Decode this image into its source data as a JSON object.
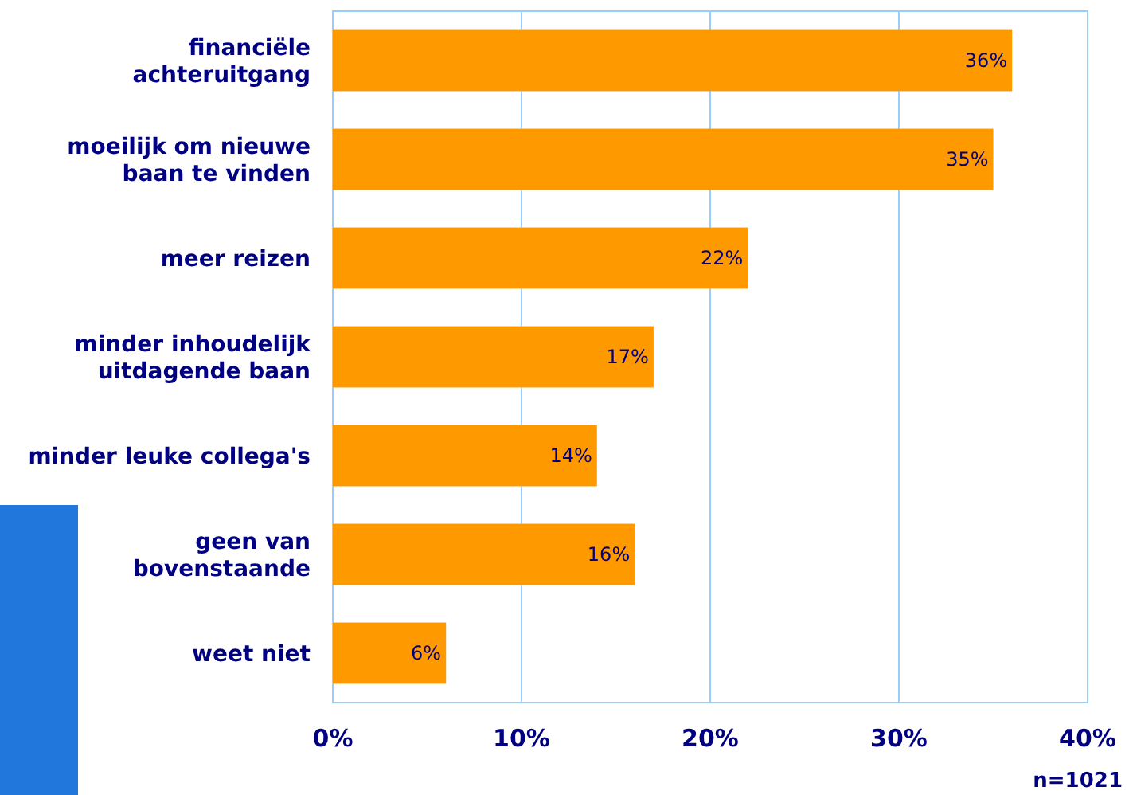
{
  "chart_data": {
    "type": "bar",
    "orientation": "horizontal",
    "categories": [
      "financiële\nachteruitgang",
      "moeilijk om nieuwe\nbaan te vinden",
      "meer reizen",
      "minder inhoudelijk\nuitdagende baan",
      "minder leuke collega's",
      "geen van\nbovenstaande",
      "weet niet"
    ],
    "values": [
      36,
      35,
      22,
      17,
      14,
      16,
      6
    ],
    "value_labels": [
      "36%",
      "35%",
      "22%",
      "17%",
      "14%",
      "16%",
      "6%"
    ],
    "color": "#ff9900",
    "xlim": [
      0,
      40
    ],
    "xticks": [
      {
        "value": 0,
        "label": "0%"
      },
      {
        "value": 10,
        "label": "10%"
      },
      {
        "value": 20,
        "label": "20%"
      },
      {
        "value": 30,
        "label": "30%"
      },
      {
        "value": 40,
        "label": "40%"
      }
    ],
    "grid": "x",
    "annotations": [
      "n=1021"
    ]
  }
}
